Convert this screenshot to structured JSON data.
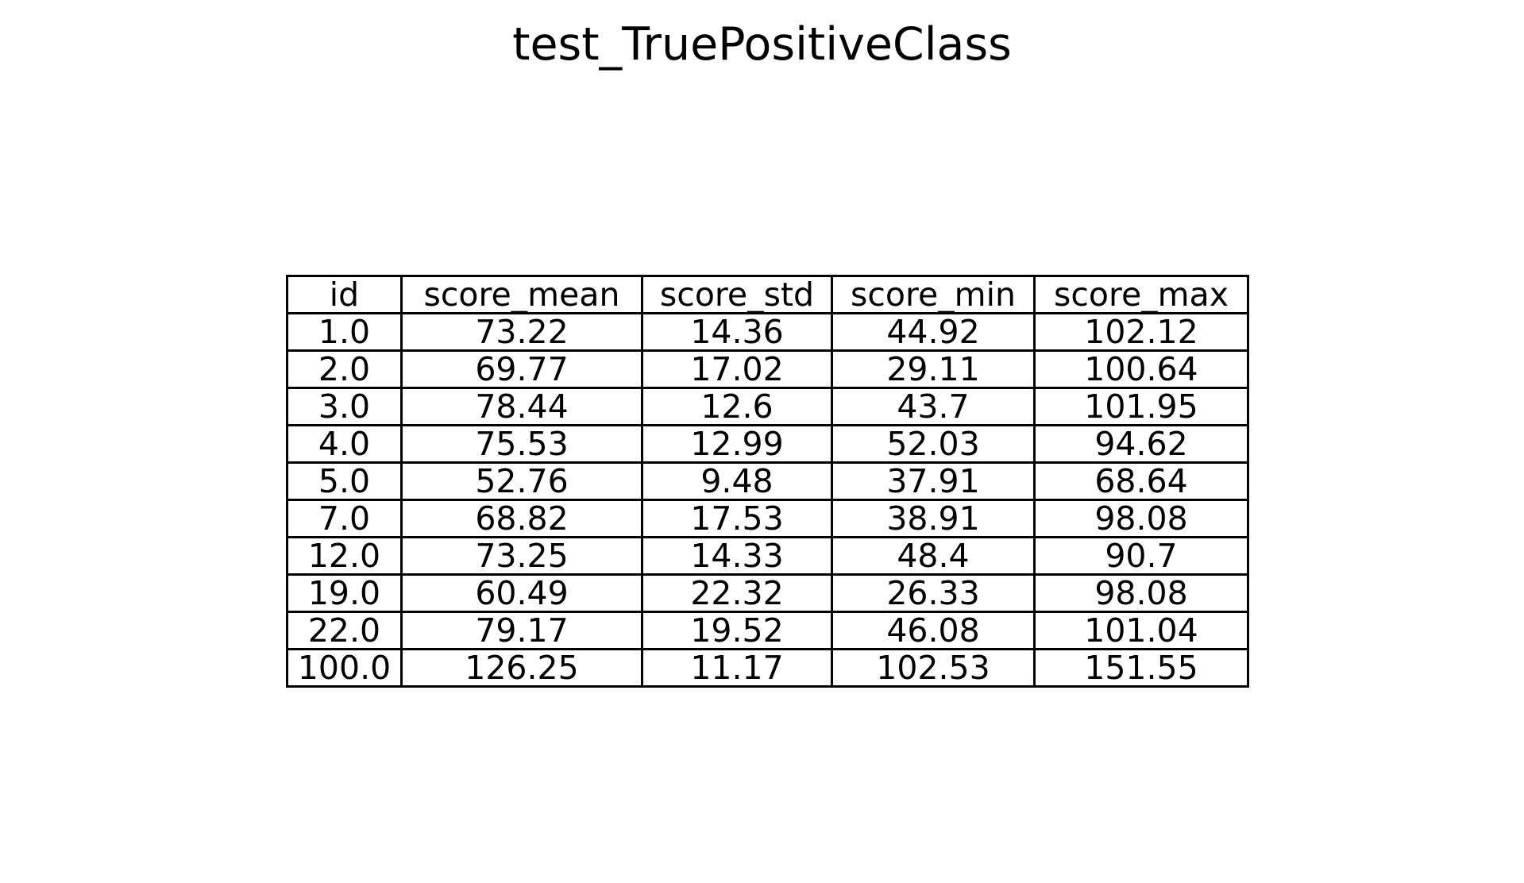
{
  "chart_data": {
    "type": "table",
    "title": "test_TruePositiveClass",
    "columns": [
      "id",
      "score_mean",
      "score_std",
      "score_min",
      "score_max"
    ],
    "rows": [
      [
        "1.0",
        "73.22",
        "14.36",
        "44.92",
        "102.12"
      ],
      [
        "2.0",
        "69.77",
        "17.02",
        "29.11",
        "100.64"
      ],
      [
        "3.0",
        "78.44",
        "12.6",
        "43.7",
        "101.95"
      ],
      [
        "4.0",
        "75.53",
        "12.99",
        "52.03",
        "94.62"
      ],
      [
        "5.0",
        "52.76",
        "9.48",
        "37.91",
        "68.64"
      ],
      [
        "7.0",
        "68.82",
        "17.53",
        "38.91",
        "98.08"
      ],
      [
        "12.0",
        "73.25",
        "14.33",
        "48.4",
        "90.7"
      ],
      [
        "19.0",
        "60.49",
        "22.32",
        "26.33",
        "98.08"
      ],
      [
        "22.0",
        "79.17",
        "19.52",
        "46.08",
        "101.04"
      ],
      [
        "100.0",
        "126.25",
        "11.17",
        "102.53",
        "151.55"
      ]
    ]
  }
}
